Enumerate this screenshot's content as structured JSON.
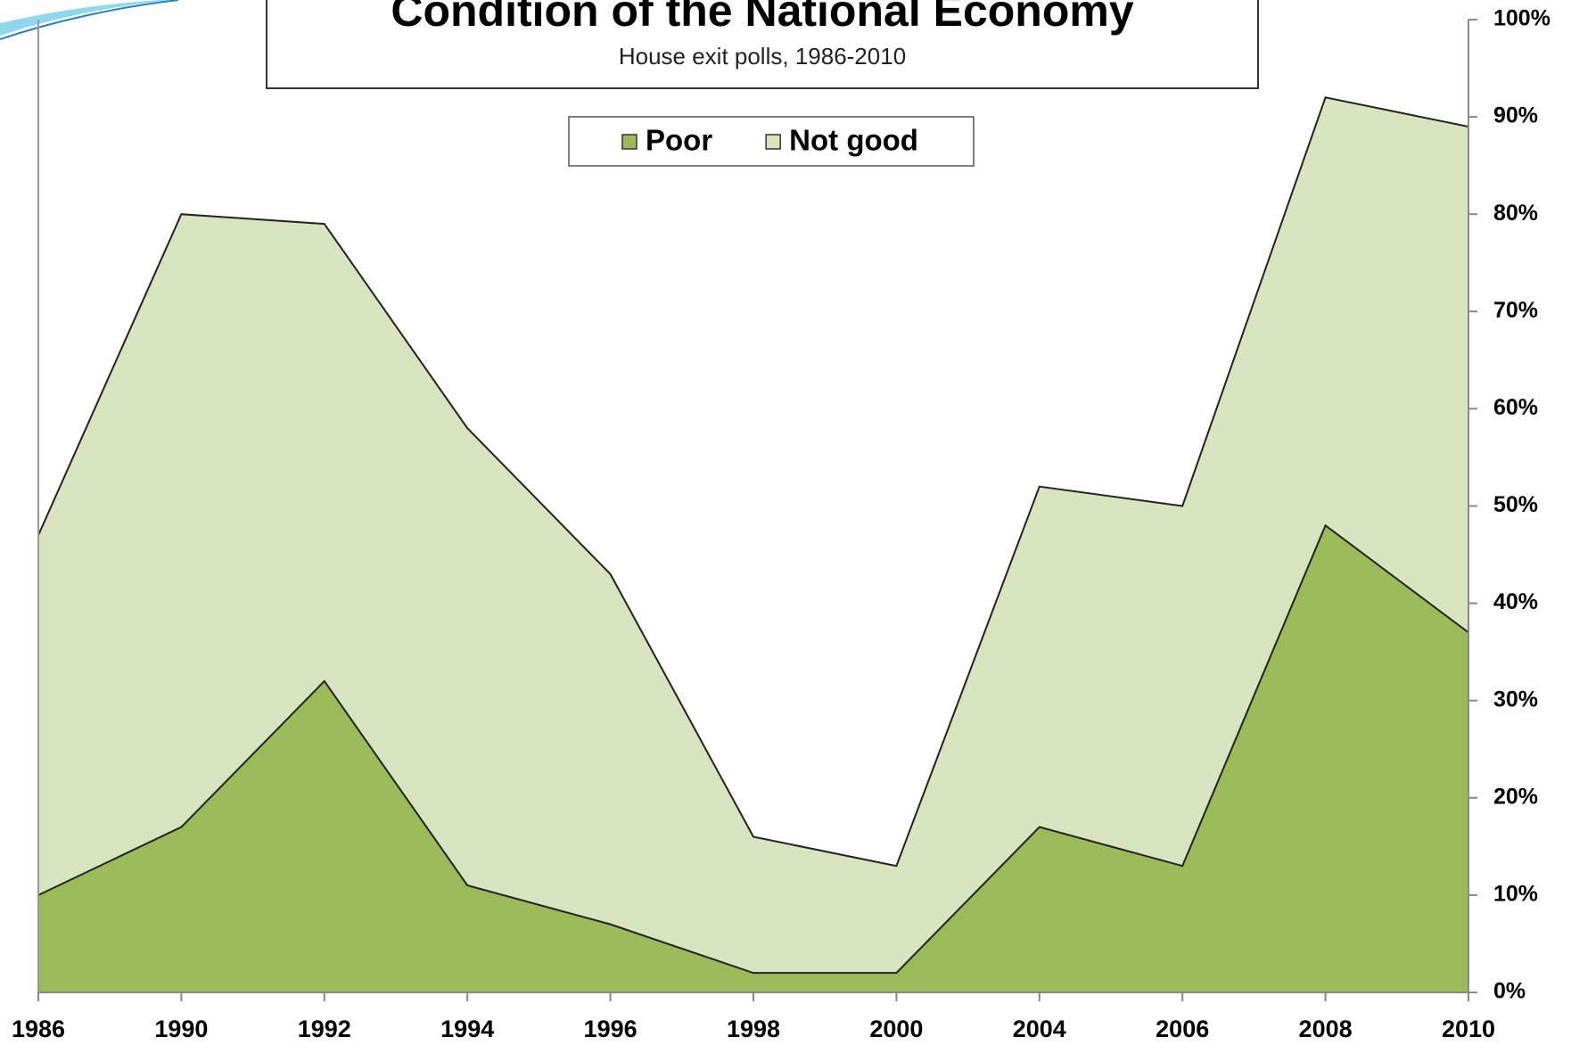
{
  "chart_data": {
    "type": "area",
    "title": "Condition of the National Economy",
    "subtitle": "House exit polls, 1986-2010",
    "categories": [
      "1986",
      "1990",
      "1992",
      "1994",
      "1996",
      "1998",
      "2000",
      "2004",
      "2006",
      "2008",
      "2010"
    ],
    "series": [
      {
        "name": "Not good",
        "color": "#d7e4bd",
        "values": [
          47,
          80,
          79,
          58,
          43,
          16,
          13,
          52,
          50,
          92,
          89
        ]
      },
      {
        "name": "Poor",
        "color": "#9bbb59",
        "values": [
          10,
          17,
          32,
          11,
          7,
          2,
          2,
          17,
          13,
          48,
          37
        ]
      }
    ],
    "legend_order": [
      1,
      0
    ],
    "ylim": [
      0,
      100
    ],
    "yticks": [
      {
        "value": 0,
        "label": "0%"
      },
      {
        "value": 10,
        "label": "10%"
      },
      {
        "value": 20,
        "label": "20%"
      },
      {
        "value": 30,
        "label": "30%"
      },
      {
        "value": 40,
        "label": "40%"
      },
      {
        "value": 50,
        "label": "50%"
      },
      {
        "value": 60,
        "label": "60%"
      },
      {
        "value": 70,
        "label": "70%"
      },
      {
        "value": 80,
        "label": "80%"
      },
      {
        "value": 90,
        "label": "90%"
      },
      {
        "value": 100,
        "label": "100%"
      }
    ],
    "legend_position": "top"
  }
}
